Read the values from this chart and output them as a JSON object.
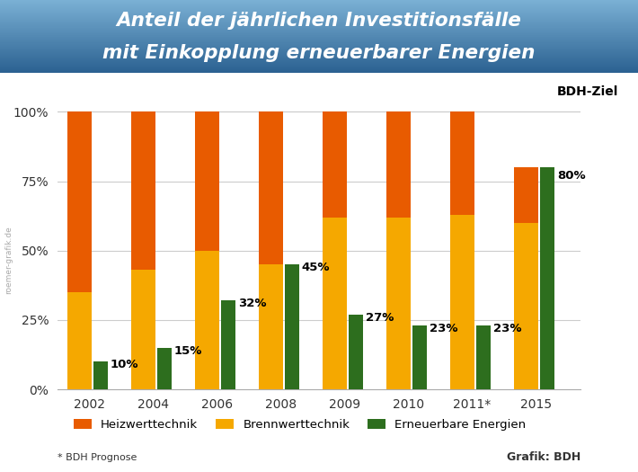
{
  "title_line1": "Anteil der jährlichen Investitionsfälle",
  "title_line2": "mit Einkopplung erneuerbarer Energien",
  "categories": [
    "2002",
    "2004",
    "2006",
    "2008",
    "2009",
    "2010",
    "2011*",
    "2015"
  ],
  "heizwert": [
    65,
    57,
    50,
    55,
    38,
    38,
    37,
    20
  ],
  "brennwert": [
    35,
    43,
    50,
    45,
    62,
    62,
    63,
    60
  ],
  "erneuerbar": [
    10,
    15,
    32,
    45,
    27,
    23,
    23,
    80
  ],
  "erneuerbar_labels": [
    "10%",
    "15%",
    "32%",
    "45%",
    "27%",
    "23%",
    "23%",
    "80%"
  ],
  "color_heizwert": "#E85B00",
  "color_brennwert": "#F5A800",
  "color_erneuerbar": "#2D6E1E",
  "title_bg_top": "#7AB0D4",
  "title_bg_bottom": "#2A6090",
  "chart_bg": "#FFFFFF",
  "yticks": [
    0,
    25,
    50,
    75,
    100
  ],
  "ytick_labels": [
    "0%",
    "25%",
    "50%",
    "75%",
    "100%"
  ],
  "legend_labels": [
    "Heizwerttechnik",
    "Brennwerttechnik",
    "Erneuerbare Energien"
  ],
  "bdh_ziel_label": "BDH-Ziel",
  "footnote": "* BDH Prognose",
  "grafik_label": "Grafik: BDH",
  "watermark": "roemer-grafik.de",
  "grid_color": "#CCCCCC"
}
